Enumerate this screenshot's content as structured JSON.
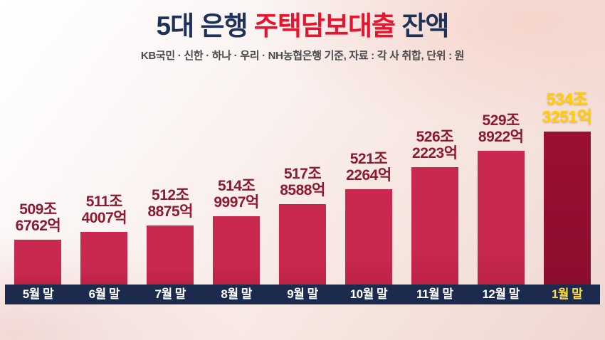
{
  "header": {
    "title_part1": "5대 은행 ",
    "title_part2": "주택담보대출",
    "title_part3": " 잔액",
    "subtitle": "KB국민 · 신한 · 하나 · 우리 · NH농협은행 기준, 자료 : 각 사 취합, 단위 : 원"
  },
  "chart_data": {
    "type": "bar",
    "title": "5대 은행 주택담보대출 잔액",
    "categories": [
      "5월 말",
      "6월 말",
      "7월 말",
      "8월 말",
      "9월 말",
      "10월 말",
      "11월 말",
      "12월 말",
      "1월 말"
    ],
    "values": [
      509.6762,
      511.4007,
      512.8875,
      514.9997,
      517.8588,
      521.2264,
      526.2223,
      529.8922,
      534.3251
    ],
    "value_labels": [
      [
        "509조",
        "6762억"
      ],
      [
        "511조",
        "4007억"
      ],
      [
        "512조",
        "8875억"
      ],
      [
        "514조",
        "9997억"
      ],
      [
        "517조",
        "8588억"
      ],
      [
        "521조",
        "2264억"
      ],
      [
        "526조",
        "2223억"
      ],
      [
        "529조",
        "8922억"
      ],
      [
        "534조",
        "3251억"
      ]
    ],
    "unit": "조 원",
    "ylim": [
      499,
      540
    ],
    "grid": false,
    "legend": null,
    "highlight_index": 8,
    "colors": {
      "bar": "#c9294e",
      "bar_deep": "#bd2247",
      "bar_highlight": "#9a1033",
      "bar_highlight_deep": "#8b0d2d",
      "label": "#8e1a30",
      "label_highlight": "#ffcf00",
      "axis_strip": "#1c2b4d",
      "axis_label": "#ffffff",
      "axis_label_highlight": "#ffdf3c"
    }
  }
}
